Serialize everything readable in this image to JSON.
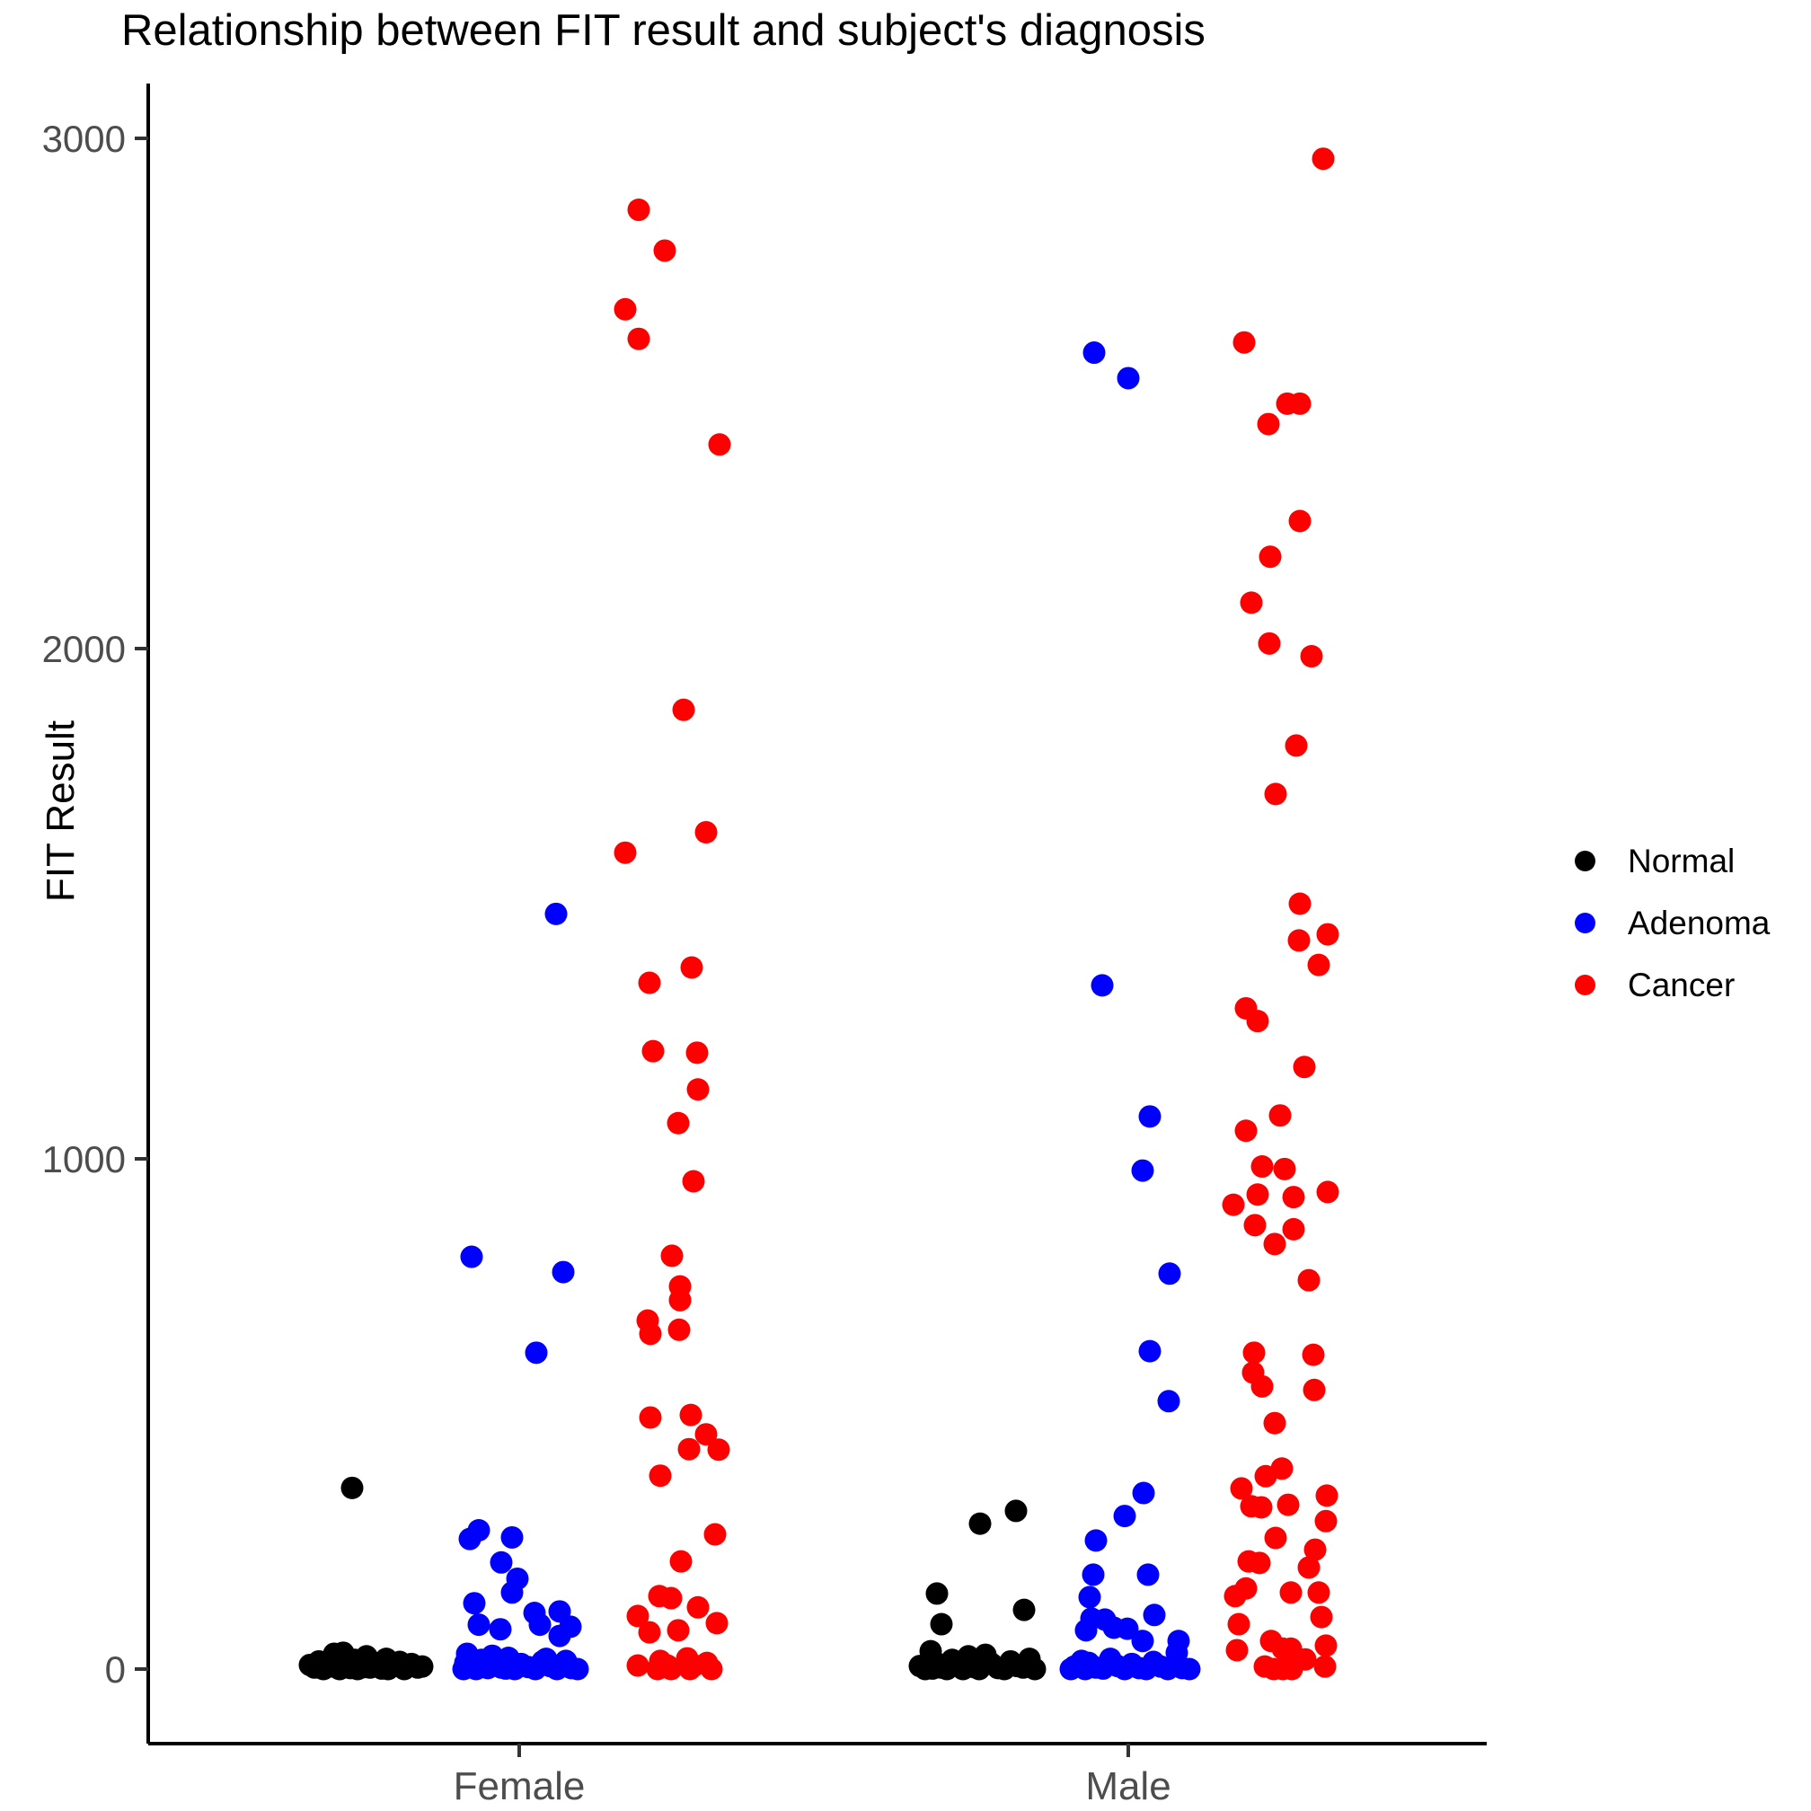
{
  "chart_data": {
    "type": "scatter",
    "title": "Relationship between FIT result and subject's diagnosis",
    "xlabel": "",
    "ylabel": "FIT Result",
    "x_categories": [
      "Female",
      "Male"
    ],
    "y_ticks": [
      0,
      1000,
      2000,
      3000
    ],
    "ylim": [
      -150,
      3150
    ],
    "grid": "off",
    "legend_position": "right",
    "legend": [
      {
        "label": "Normal",
        "color": "#000000"
      },
      {
        "label": "Adenoma",
        "color": "#0000ff"
      },
      {
        "label": "Cancer",
        "color": "#ff0000"
      }
    ],
    "series": [
      {
        "name": "Normal",
        "color": "#000000",
        "female_points": [
          [
            355,
            2
          ],
          [
            32,
            -8
          ],
          [
            30,
            -18
          ],
          [
            25,
            18
          ],
          [
            22,
            -18
          ],
          [
            20,
            40
          ],
          [
            18,
            5
          ],
          [
            15,
            -35
          ],
          [
            14,
            55
          ],
          [
            12,
            -5
          ],
          [
            12,
            28
          ],
          [
            10,
            -25
          ],
          [
            10,
            68
          ],
          [
            8,
            -45
          ],
          [
            8,
            12
          ],
          [
            6,
            48
          ],
          [
            5,
            -20
          ],
          [
            5,
            80
          ],
          [
            4,
            16
          ],
          [
            3,
            -40
          ],
          [
            3,
            22
          ],
          [
            3,
            75
          ],
          [
            2,
            0
          ],
          [
            1,
            35
          ],
          [
            0,
            -30
          ],
          [
            0,
            -12
          ],
          [
            0,
            8
          ],
          [
            0,
            60
          ],
          [
            0,
            42
          ]
        ],
        "male_points": [
          [
            310,
            63
          ],
          [
            285,
            23
          ],
          [
            148,
            -25
          ],
          [
            116,
            72
          ],
          [
            88,
            -20
          ],
          [
            35,
            -32
          ],
          [
            28,
            29
          ],
          [
            25,
            10
          ],
          [
            20,
            78
          ],
          [
            18,
            -8
          ],
          [
            15,
            57
          ],
          [
            12,
            -26
          ],
          [
            10,
            36
          ],
          [
            8,
            -2
          ],
          [
            6,
            -44
          ],
          [
            6,
            64
          ],
          [
            4,
            16
          ],
          [
            3,
            -20
          ],
          [
            3,
            71
          ],
          [
            2,
            43
          ],
          [
            1,
            -30
          ],
          [
            0,
            -38
          ],
          [
            0,
            -14
          ],
          [
            0,
            4
          ],
          [
            0,
            22
          ],
          [
            0,
            50
          ],
          [
            0,
            84
          ]
        ]
      },
      {
        "name": "Adenoma",
        "color": "#0000ff",
        "female_points": [
          [
            1480,
            41
          ],
          [
            808,
            -53
          ],
          [
            778,
            49
          ],
          [
            620,
            19
          ],
          [
            272,
            -45
          ],
          [
            258,
            -8
          ],
          [
            255,
            -55
          ],
          [
            209,
            -20
          ],
          [
            177,
            -2
          ],
          [
            150,
            -8
          ],
          [
            129,
            -50
          ],
          [
            113,
            45
          ],
          [
            110,
            17
          ],
          [
            87,
            -45
          ],
          [
            87,
            23
          ],
          [
            83,
            57
          ],
          [
            78,
            -21
          ],
          [
            65,
            45
          ],
          [
            30,
            -58
          ],
          [
            26,
            -30
          ],
          [
            22,
            -12
          ],
          [
            20,
            30
          ],
          [
            18,
            -42
          ],
          [
            16,
            52
          ],
          [
            15,
            26
          ],
          [
            12,
            -60
          ],
          [
            10,
            2
          ],
          [
            9,
            50
          ],
          [
            8,
            -28
          ],
          [
            6,
            34
          ],
          [
            5,
            -50
          ],
          [
            4,
            10
          ],
          [
            3,
            -20
          ],
          [
            2,
            58
          ],
          [
            2,
            -35
          ],
          [
            1,
            -15
          ],
          [
            0,
            -5
          ],
          [
            0,
            18
          ],
          [
            0,
            -48
          ],
          [
            0,
            42
          ],
          [
            0,
            65
          ],
          [
            0,
            -62
          ]
        ],
        "male_points": [
          [
            2580,
            -38
          ],
          [
            2530,
            0
          ],
          [
            1340,
            -29
          ],
          [
            1083,
            24
          ],
          [
            977,
            16
          ],
          [
            775,
            46
          ],
          [
            623,
            24
          ],
          [
            525,
            45
          ],
          [
            345,
            17
          ],
          [
            300,
            -4
          ],
          [
            252,
            -36
          ],
          [
            185,
            -39
          ],
          [
            185,
            22
          ],
          [
            141,
            -43
          ],
          [
            106,
            29
          ],
          [
            99,
            -41
          ],
          [
            97,
            -26
          ],
          [
            81,
            -16
          ],
          [
            79,
            -1
          ],
          [
            76,
            -47
          ],
          [
            55,
            16
          ],
          [
            55,
            56
          ],
          [
            32,
            54
          ],
          [
            20,
            -20
          ],
          [
            16,
            -52
          ],
          [
            14,
            28
          ],
          [
            12,
            -44
          ],
          [
            10,
            4
          ],
          [
            8,
            52
          ],
          [
            6,
            -12
          ],
          [
            5,
            -60
          ],
          [
            5,
            36
          ],
          [
            3,
            -36
          ],
          [
            2,
            12
          ],
          [
            2,
            60
          ],
          [
            1,
            -28
          ],
          [
            0,
            -4
          ],
          [
            0,
            20
          ],
          [
            0,
            44
          ],
          [
            0,
            -48
          ],
          [
            0,
            68
          ],
          [
            0,
            -64
          ]
        ]
      },
      {
        "name": "Cancer",
        "color": "#ff0000",
        "female_points": [
          [
            2860,
            -55
          ],
          [
            2780,
            -26
          ],
          [
            2665,
            -70
          ],
          [
            2607,
            -55
          ],
          [
            2400,
            35
          ],
          [
            1880,
            -5
          ],
          [
            1640,
            20
          ],
          [
            1600,
            -70
          ],
          [
            1375,
            4
          ],
          [
            1345,
            -43
          ],
          [
            1211,
            -39
          ],
          [
            1208,
            10
          ],
          [
            1136,
            11
          ],
          [
            1070,
            -11
          ],
          [
            956,
            6
          ],
          [
            810,
            -18
          ],
          [
            750,
            -9
          ],
          [
            723,
            -9
          ],
          [
            683,
            -45
          ],
          [
            665,
            -10
          ],
          [
            657,
            -42
          ],
          [
            498,
            3
          ],
          [
            493,
            -42
          ],
          [
            460,
            20
          ],
          [
            431,
            1
          ],
          [
            430,
            34
          ],
          [
            379,
            -31
          ],
          [
            264,
            30
          ],
          [
            211,
            -8
          ],
          [
            143,
            -32
          ],
          [
            139,
            -19
          ],
          [
            121,
            11
          ],
          [
            104,
            -56
          ],
          [
            90,
            32
          ],
          [
            76,
            -11
          ],
          [
            72,
            -43
          ],
          [
            21,
            -1
          ],
          [
            16,
            -31
          ],
          [
            12,
            21
          ],
          [
            7,
            -56
          ],
          [
            7,
            -23
          ],
          [
            7,
            7
          ],
          [
            0,
            26
          ],
          [
            0,
            -34
          ],
          [
            0,
            -19
          ],
          [
            0,
            2
          ]
        ],
        "male_points": [
          [
            2960,
            29
          ],
          [
            2600,
            -59
          ],
          [
            2480,
            -11
          ],
          [
            2480,
            3
          ],
          [
            2440,
            -32
          ],
          [
            2250,
            3
          ],
          [
            2180,
            -30
          ],
          [
            2090,
            -51
          ],
          [
            2010,
            -31
          ],
          [
            1985,
            16
          ],
          [
            1810,
            -1
          ],
          [
            1715,
            -24
          ],
          [
            1500,
            3
          ],
          [
            1440,
            34
          ],
          [
            1428,
            2
          ],
          [
            1380,
            24
          ],
          [
            1295,
            -57
          ],
          [
            1270,
            -44
          ],
          [
            1180,
            8
          ],
          [
            1085,
            -19
          ],
          [
            1055,
            -57
          ],
          [
            985,
            -39
          ],
          [
            980,
            -14
          ],
          [
            935,
            34
          ],
          [
            930,
            -44
          ],
          [
            925,
            -4
          ],
          [
            910,
            -71
          ],
          [
            870,
            -47
          ],
          [
            862,
            -4
          ],
          [
            833,
            -25
          ],
          [
            762,
            13
          ],
          [
            620,
            -48
          ],
          [
            616,
            18
          ],
          [
            581,
            -49
          ],
          [
            554,
            -39
          ],
          [
            547,
            19
          ],
          [
            482,
            -25
          ],
          [
            393,
            -17
          ],
          [
            378,
            -35
          ],
          [
            354,
            -62
          ],
          [
            340,
            33
          ],
          [
            322,
            -10
          ],
          [
            319,
            -51
          ],
          [
            317,
            -40
          ],
          [
            290,
            32
          ],
          [
            257,
            -24
          ],
          [
            234,
            20
          ],
          [
            211,
            -54
          ],
          [
            208,
            -42
          ],
          [
            199,
            13
          ],
          [
            158,
            -57
          ],
          [
            150,
            -7
          ],
          [
            150,
            24
          ],
          [
            143,
            -69
          ],
          [
            102,
            27
          ],
          [
            88,
            -65
          ],
          [
            55,
            -29
          ],
          [
            46,
            32
          ],
          [
            40,
            -16
          ],
          [
            40,
            -7
          ],
          [
            37,
            -67
          ],
          [
            19,
            9
          ],
          [
            5,
            -36
          ],
          [
            5,
            31
          ],
          [
            0,
            -26
          ],
          [
            0,
            -16
          ],
          [
            0,
            -6
          ]
        ]
      }
    ]
  }
}
